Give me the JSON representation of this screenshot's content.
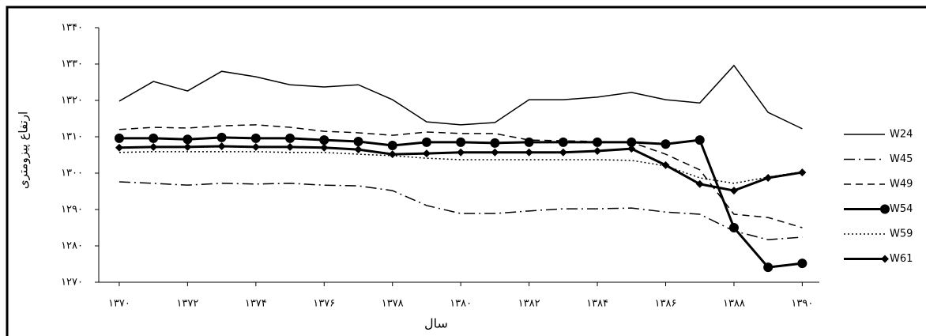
{
  "chart_data": {
    "type": "line",
    "y_label": "ارتفاع پیزومتری",
    "x_label": "سال",
    "x": [
      1370,
      1371,
      1372,
      1373,
      1374,
      1375,
      1376,
      1377,
      1378,
      1379,
      1380,
      1381,
      1382,
      1383,
      1384,
      1385,
      1386,
      1387,
      1388,
      1389,
      1390
    ],
    "xlim": [
      1369.4,
      1390.5
    ],
    "xticks": [
      {
        "value": 1370,
        "label": "۱۳۷۰"
      },
      {
        "value": 1372,
        "label": "۱۳۷۲"
      },
      {
        "value": 1374,
        "label": "۱۳۷۴"
      },
      {
        "value": 1376,
        "label": "۱۳۷۶"
      },
      {
        "value": 1378,
        "label": "۱۳۷۸"
      },
      {
        "value": 1380,
        "label": "۱۳۸۰"
      },
      {
        "value": 1382,
        "label": "۱۳۸۲"
      },
      {
        "value": 1384,
        "label": "۱۳۸۴"
      },
      {
        "value": 1386,
        "label": "۱۳۸۶"
      },
      {
        "value": 1388,
        "label": "۱۳۸۸"
      },
      {
        "value": 1390,
        "label": "۱۳۹۰"
      }
    ],
    "ylim": [
      1270,
      1340
    ],
    "yticks": [
      {
        "value": 1270,
        "label": "۱۲۷۰"
      },
      {
        "value": 1280,
        "label": "۱۲۸۰"
      },
      {
        "value": 1290,
        "label": "۱۲۹۰"
      },
      {
        "value": 1300,
        "label": "۱۳۰۰"
      },
      {
        "value": 1310,
        "label": "۱۳۱۰"
      },
      {
        "value": 1320,
        "label": "۱۳۲۰"
      },
      {
        "value": 1330,
        "label": "۱۳۳۰"
      },
      {
        "value": 1340,
        "label": "۱۳۴۰"
      }
    ],
    "grid": false,
    "legend": "right",
    "series": [
      {
        "name": "W24",
        "color": "#000000",
        "line_style": "solid",
        "values": [
          1319.8,
          1325.2,
          1322.6,
          1328.0,
          1326.5,
          1324.3,
          1323.7,
          1324.3,
          1320.2,
          1314.1,
          1313.3,
          1313.9,
          1320.2,
          1320.2,
          1320.9,
          1322.2,
          1320.2,
          1319.3,
          1329.6,
          1316.7,
          1312.2
        ]
      },
      {
        "name": "W45",
        "color": "#000000",
        "line_style": "dashdot",
        "values": [
          1297.6,
          1297.2,
          1296.7,
          1297.2,
          1297.0,
          1297.2,
          1296.7,
          1296.5,
          1295.2,
          1291.1,
          1288.9,
          1288.9,
          1289.6,
          1290.2,
          1290.2,
          1290.4,
          1289.3,
          1288.7,
          1284.1,
          1281.7,
          1282.4
        ]
      },
      {
        "name": "W49",
        "color": "#000000",
        "line_style": "dashed",
        "values": [
          1312.0,
          1312.6,
          1312.4,
          1313.0,
          1313.3,
          1312.6,
          1311.5,
          1311.1,
          1310.4,
          1311.3,
          1310.9,
          1310.9,
          1309.1,
          1308.9,
          1308.7,
          1308.5,
          1305.2,
          1300.9,
          1288.7,
          1287.8,
          1285.0
        ]
      },
      {
        "name": "W54",
        "color": "#000000",
        "line_style": "solid",
        "marker": "circle",
        "thick": true,
        "values": [
          1309.6,
          1309.6,
          1309.3,
          1309.8,
          1309.6,
          1309.6,
          1309.1,
          1308.7,
          1307.6,
          1308.5,
          1308.5,
          1308.3,
          1308.5,
          1308.5,
          1308.5,
          1308.5,
          1308.0,
          1309.1,
          1285.0,
          1274.1,
          1275.2
        ]
      },
      {
        "name": "W59",
        "color": "#000000",
        "line_style": "dotted",
        "values": [
          1305.7,
          1305.9,
          1305.9,
          1305.9,
          1305.9,
          1305.7,
          1305.7,
          1305.2,
          1304.8,
          1304.1,
          1303.7,
          1303.7,
          1303.7,
          1303.7,
          1303.7,
          1303.5,
          1302.0,
          1298.7,
          1297.2,
          1298.9,
          1300.4
        ]
      },
      {
        "name": "W61",
        "color": "#000000",
        "line_style": "solid",
        "marker": "diamond",
        "thick": true,
        "values": [
          1307.0,
          1307.2,
          1307.2,
          1307.4,
          1307.2,
          1307.2,
          1307.0,
          1306.5,
          1305.2,
          1305.4,
          1305.7,
          1305.7,
          1305.7,
          1305.7,
          1306.1,
          1306.7,
          1302.2,
          1297.0,
          1295.2,
          1298.7,
          1300.2
        ]
      }
    ]
  }
}
